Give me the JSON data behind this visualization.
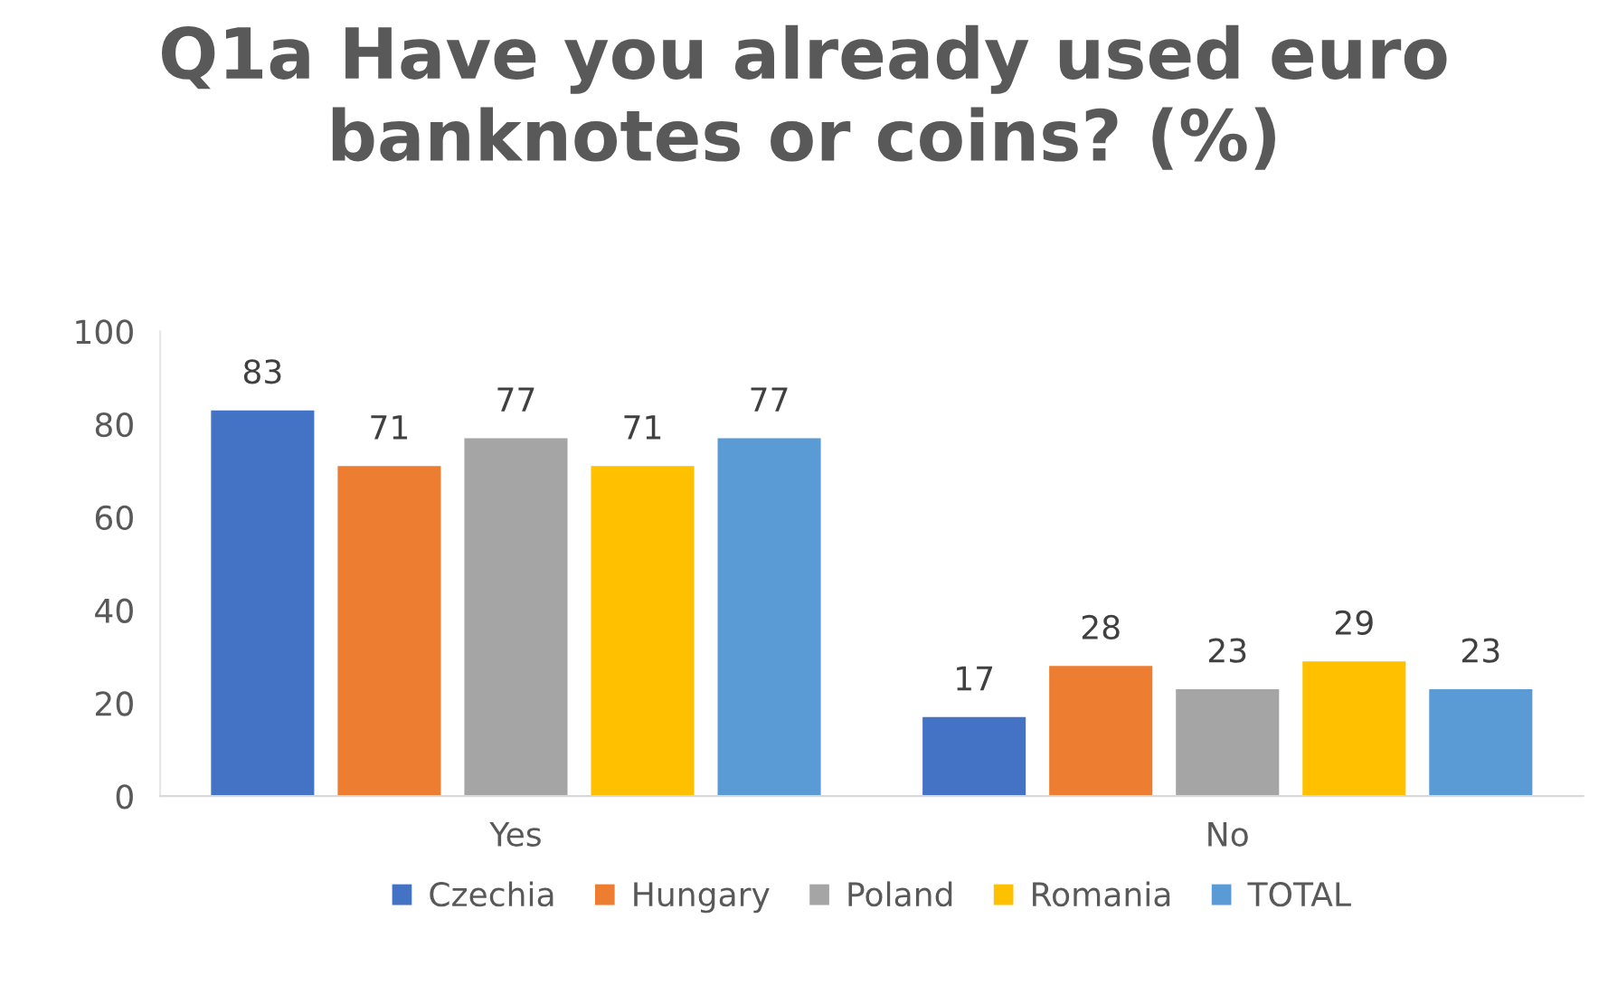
{
  "chart_data": {
    "type": "bar",
    "title": "Q1a Have you already used euro\nbanknotes or coins? (%)",
    "categories": [
      "Yes",
      "No"
    ],
    "series": [
      {
        "name": "Czechia",
        "color": "#4472c4",
        "values": [
          83,
          17
        ]
      },
      {
        "name": "Hungary",
        "color": "#ed7d31",
        "values": [
          71,
          28
        ]
      },
      {
        "name": "Poland",
        "color": "#a5a5a5",
        "values": [
          77,
          23
        ]
      },
      {
        "name": "Romania",
        "color": "#ffc000",
        "values": [
          71,
          29
        ]
      },
      {
        "name": "TOTAL",
        "color": "#5b9bd5",
        "values": [
          77,
          23
        ]
      }
    ],
    "ylim": [
      0,
      100
    ],
    "yticks": [
      0,
      20,
      40,
      60,
      80,
      100
    ],
    "grid": false,
    "legend": "bottom",
    "data_labels": true
  }
}
